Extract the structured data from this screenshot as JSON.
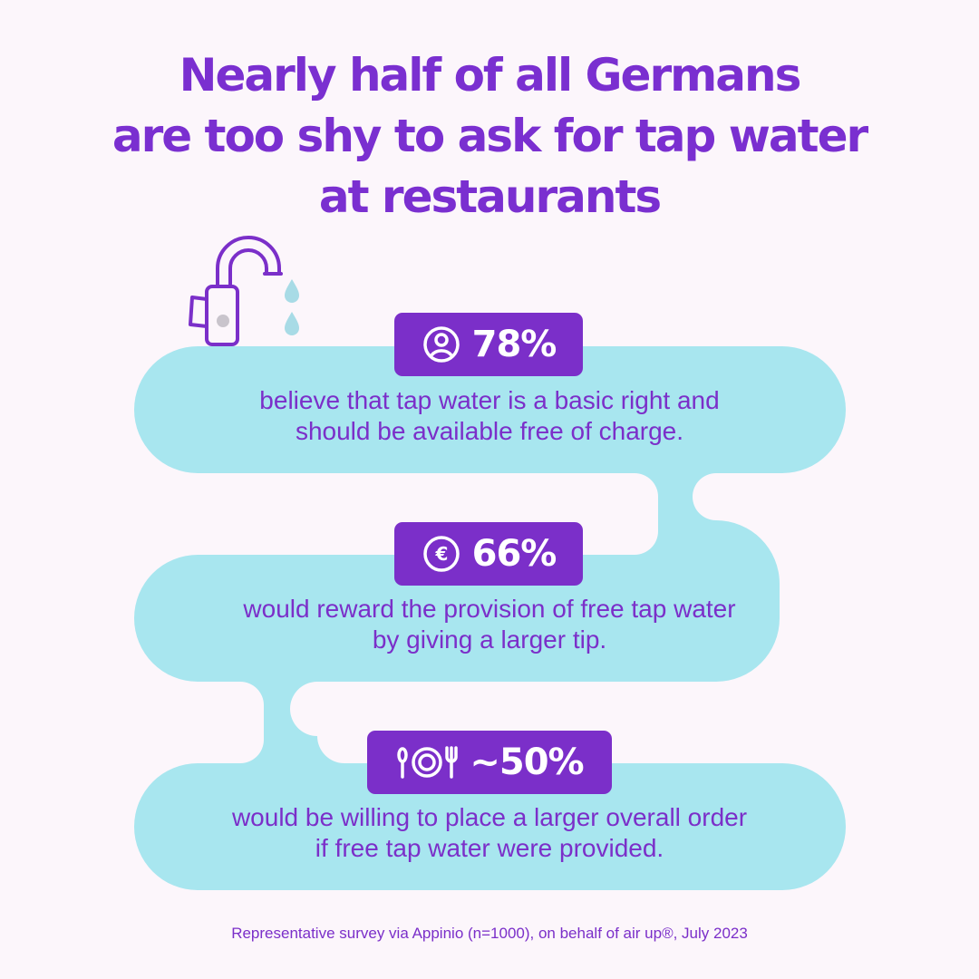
{
  "title": {
    "line1": "Nearly half of all Germans",
    "line2": "are too shy to ask for tap water",
    "line3": "at restaurants"
  },
  "stats": [
    {
      "icon": "person-icon",
      "value": "78%",
      "line1": "believe that tap water is a basic right and",
      "line2": "should be available free of charge."
    },
    {
      "icon": "euro-icon",
      "value": "66%",
      "line1": "would reward the provision of free tap water",
      "line2": "by giving a larger tip."
    },
    {
      "icon": "plate-cutlery-icon",
      "value": "~50%",
      "line1": "would be willing to place a larger overall order",
      "line2": "if free tap water were provided."
    }
  ],
  "footer": "Representative survey via Appinio (n=1000), on behalf of air up®, July 2023",
  "colors": {
    "background": "#fcf6fb",
    "accent": "#7b2fc9",
    "flow": "#a8e6ef",
    "drop": "#a8dbe6"
  }
}
